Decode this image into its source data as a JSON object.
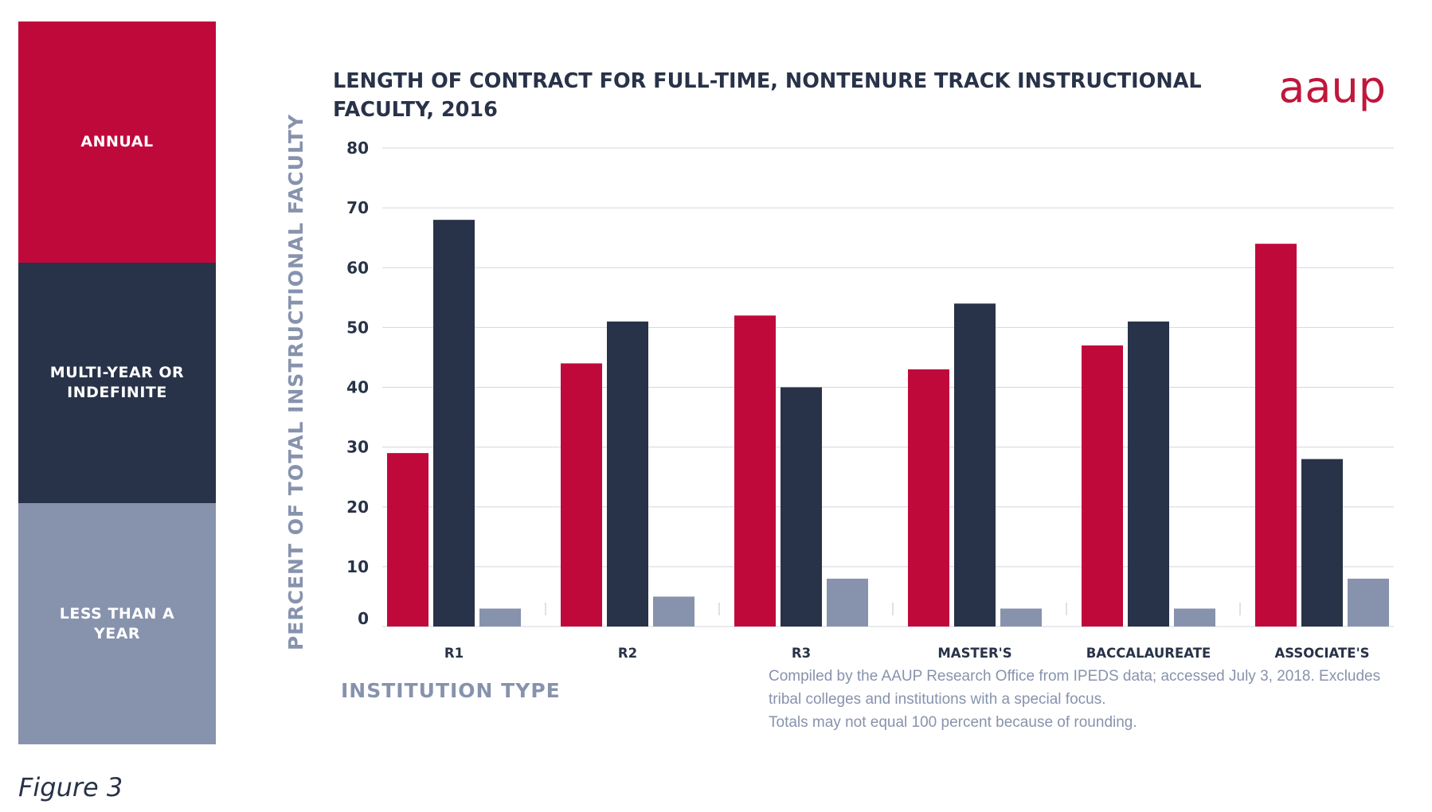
{
  "brand": "aaup",
  "figure_caption": "Figure 3",
  "legend": {
    "items": [
      {
        "label": "ANNUAL",
        "color": "#c0093b"
      },
      {
        "label": "MULTI-YEAR OR INDEFINITE",
        "color": "#283248"
      },
      {
        "label": "LESS THAN A YEAR",
        "color": "#8793ad"
      }
    ]
  },
  "chart_data": {
    "type": "bar",
    "title_lines": [
      "LENGTH OF CONTRACT FOR FULL-TIME, NONTENURE TRACK INSTRUCTIONAL",
      "FACULTY, 2016"
    ],
    "xlabel": "INSTITUTION TYPE",
    "ylabel": "PERCENT OF TOTAL INSTRUCTIONAL FACULTY",
    "ylim": [
      0,
      80
    ],
    "yticks": [
      0,
      10,
      20,
      30,
      40,
      50,
      60,
      70,
      80
    ],
    "grid": true,
    "categories": [
      "R1",
      "R2",
      "R3",
      "MASTER'S",
      "BACCALAUREATE",
      "ASSOCIATE'S"
    ],
    "series": [
      {
        "name": "ANNUAL",
        "color": "#c0093b",
        "values": [
          29,
          44,
          52,
          43,
          47,
          64
        ]
      },
      {
        "name": "MULTI-YEAR OR INDEFINITE",
        "color": "#283248",
        "values": [
          68,
          51,
          40,
          54,
          51,
          28
        ]
      },
      {
        "name": "LESS THAN A YEAR",
        "color": "#8793ad",
        "values": [
          3,
          5,
          8,
          3,
          3,
          8
        ]
      }
    ]
  },
  "source_note": [
    "Compiled by the AAUP Research Office from IPEDS data; accessed July 3, 2018.  Excludes",
    "tribal colleges and institutions with a special focus.",
    "Totals may not equal 100 percent because of rounding."
  ]
}
